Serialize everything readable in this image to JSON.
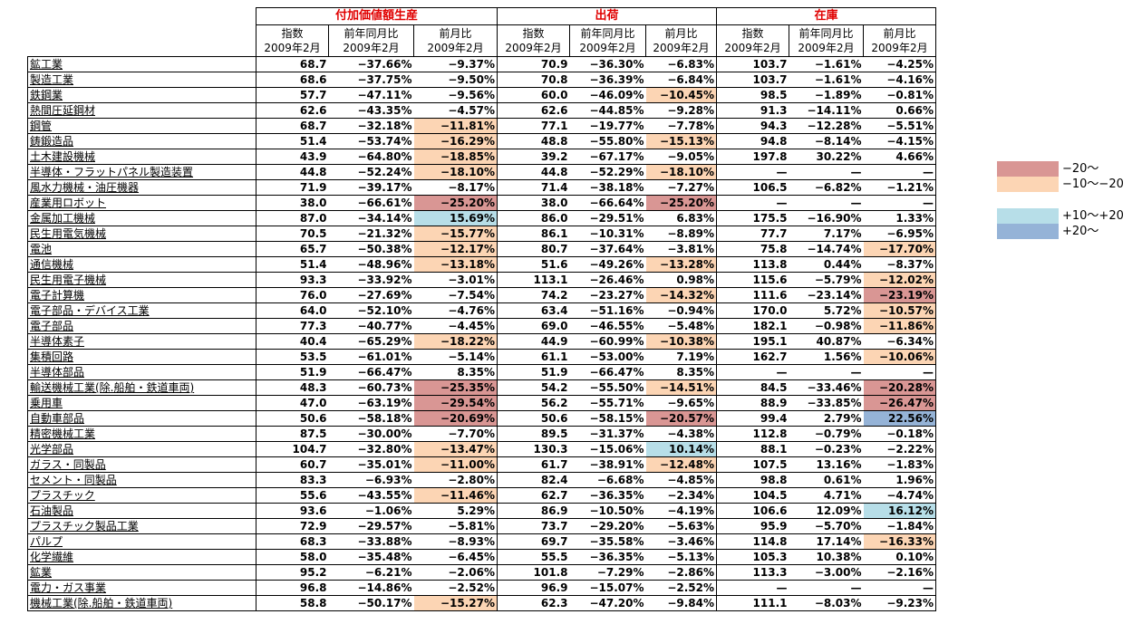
{
  "groups": [
    {
      "title": "付加価値額生産"
    },
    {
      "title": "出荷"
    },
    {
      "title": "在庫"
    }
  ],
  "sub_headers": [
    {
      "line1": "指数",
      "line2": "2009年2月"
    },
    {
      "line1": "前年同月比",
      "line2": "2009年2月"
    },
    {
      "line1": "前月比",
      "line2": "2009年2月"
    }
  ],
  "colors": {
    "le_minus20": "#d99694",
    "minus10_to_minus20": "#fcd5b4",
    "plus10_to_plus20": "#b7dee8",
    "ge_plus20": "#95b3d7"
  },
  "legend": [
    {
      "label": "−20〜",
      "color": "#d99694"
    },
    {
      "label": "−10〜−20",
      "color": "#fcd5b4"
    },
    {
      "label": "+10〜+20",
      "color": "#b7dee8"
    },
    {
      "label": "+20〜",
      "color": "#95b3d7"
    }
  ],
  "rows": [
    {
      "label": "鉱工業",
      "values": [
        "68.7",
        "−37.66%",
        "−9.37%",
        "70.9",
        "−36.30%",
        "−6.83%",
        "103.7",
        "−1.61%",
        "−4.25%"
      ]
    },
    {
      "label": "製造工業",
      "values": [
        "68.6",
        "−37.75%",
        "−9.50%",
        "70.8",
        "−36.39%",
        "−6.84%",
        "103.7",
        "−1.61%",
        "−4.16%"
      ]
    },
    {
      "label": "鉄鋼業",
      "values": [
        "57.7",
        "−47.11%",
        "−9.56%",
        "60.0",
        "−46.09%",
        "−10.45%",
        "98.5",
        "−1.89%",
        "−0.81%"
      ]
    },
    {
      "label": "熱間圧延鋼材",
      "values": [
        "62.6",
        "−43.35%",
        "−4.57%",
        "62.6",
        "−44.85%",
        "−9.28%",
        "91.3",
        "−14.11%",
        "0.66%"
      ]
    },
    {
      "label": "鋼管",
      "values": [
        "68.7",
        "−32.18%",
        "−11.81%",
        "77.1",
        "−19.77%",
        "−7.78%",
        "94.3",
        "−12.28%",
        "−5.51%"
      ]
    },
    {
      "label": "鋳鍛造品",
      "values": [
        "51.4",
        "−53.74%",
        "−16.29%",
        "48.8",
        "−55.80%",
        "−15.13%",
        "94.8",
        "−8.14%",
        "−4.15%"
      ]
    },
    {
      "label": "土木建設機械",
      "values": [
        "43.9",
        "−64.80%",
        "−18.85%",
        "39.2",
        "−67.17%",
        "−9.05%",
        "197.8",
        "30.22%",
        "4.66%"
      ]
    },
    {
      "label": "半導体・フラットパネル製造装置",
      "values": [
        "44.8",
        "−52.24%",
        "−18.10%",
        "44.8",
        "−52.29%",
        "−18.10%",
        "—",
        "—",
        "—"
      ]
    },
    {
      "label": "風水力機械・油圧機器",
      "values": [
        "71.9",
        "−39.17%",
        "−8.17%",
        "71.4",
        "−38.18%",
        "−7.27%",
        "106.5",
        "−6.82%",
        "−1.21%"
      ]
    },
    {
      "label": "産業用ロボット",
      "values": [
        "38.0",
        "−66.61%",
        "−25.20%",
        "38.0",
        "−66.64%",
        "−25.20%",
        "—",
        "—",
        "—"
      ]
    },
    {
      "label": "金属加工機械",
      "values": [
        "87.0",
        "−34.14%",
        "15.69%",
        "86.0",
        "−29.51%",
        "6.83%",
        "175.5",
        "−16.90%",
        "1.33%"
      ]
    },
    {
      "label": "民生用電気機械",
      "values": [
        "70.5",
        "−21.32%",
        "−15.77%",
        "86.1",
        "−10.31%",
        "−8.89%",
        "77.7",
        "7.17%",
        "−6.95%"
      ]
    },
    {
      "label": "電池",
      "values": [
        "65.7",
        "−50.38%",
        "−12.17%",
        "80.7",
        "−37.64%",
        "−3.81%",
        "75.8",
        "−14.74%",
        "−17.70%"
      ]
    },
    {
      "label": "通信機械",
      "values": [
        "51.4",
        "−48.96%",
        "−13.18%",
        "51.6",
        "−49.26%",
        "−13.28%",
        "113.8",
        "0.44%",
        "−8.37%"
      ]
    },
    {
      "label": "民生用電子機械",
      "values": [
        "93.3",
        "−33.92%",
        "−3.01%",
        "113.1",
        "−26.46%",
        "0.98%",
        "115.6",
        "−5.79%",
        "−12.02%"
      ]
    },
    {
      "label": "電子計算機",
      "values": [
        "76.0",
        "−27.69%",
        "−7.54%",
        "74.2",
        "−23.27%",
        "−14.32%",
        "111.6",
        "−23.14%",
        "−23.19%"
      ]
    },
    {
      "label": "電子部品・デバイス工業",
      "values": [
        "64.0",
        "−52.10%",
        "−4.76%",
        "63.4",
        "−51.16%",
        "−0.94%",
        "170.0",
        "5.72%",
        "−10.57%"
      ]
    },
    {
      "label": "電子部品",
      "values": [
        "77.3",
        "−40.77%",
        "−4.45%",
        "69.0",
        "−46.55%",
        "−5.48%",
        "182.1",
        "−0.98%",
        "−11.86%"
      ]
    },
    {
      "label": "半導体素子",
      "values": [
        "40.4",
        "−65.29%",
        "−18.22%",
        "44.9",
        "−60.99%",
        "−10.38%",
        "195.1",
        "40.87%",
        "−6.34%"
      ]
    },
    {
      "label": "集積回路",
      "values": [
        "53.5",
        "−61.01%",
        "−5.14%",
        "61.1",
        "−53.00%",
        "7.19%",
        "162.7",
        "1.56%",
        "−10.06%"
      ]
    },
    {
      "label": "半導体部品",
      "values": [
        "51.9",
        "−66.47%",
        "8.35%",
        "51.9",
        "−66.47%",
        "8.35%",
        "—",
        "—",
        "—"
      ]
    },
    {
      "label": "輸送機械工業(除.船舶・鉄道車両)",
      "values": [
        "48.3",
        "−60.73%",
        "−25.35%",
        "54.2",
        "−55.50%",
        "−14.51%",
        "84.5",
        "−33.46%",
        "−20.28%"
      ]
    },
    {
      "label": "乗用車",
      "values": [
        "47.0",
        "−63.19%",
        "−29.54%",
        "56.2",
        "−55.71%",
        "−9.65%",
        "88.9",
        "−33.85%",
        "−26.47%"
      ]
    },
    {
      "label": "自動車部品",
      "values": [
        "50.6",
        "−58.18%",
        "−20.69%",
        "50.6",
        "−58.15%",
        "−20.57%",
        "99.4",
        "2.79%",
        "22.56%"
      ]
    },
    {
      "label": "精密機械工業",
      "values": [
        "87.5",
        "−30.00%",
        "−7.70%",
        "89.5",
        "−31.37%",
        "−4.38%",
        "112.8",
        "−0.79%",
        "−0.18%"
      ]
    },
    {
      "label": "光学部品",
      "values": [
        "104.7",
        "−32.80%",
        "−13.47%",
        "130.3",
        "−15.06%",
        "10.14%",
        "88.1",
        "−0.23%",
        "−2.22%"
      ]
    },
    {
      "label": "ガラス・同製品",
      "values": [
        "60.7",
        "−35.01%",
        "−11.00%",
        "61.7",
        "−38.91%",
        "−12.48%",
        "107.5",
        "13.16%",
        "−1.83%"
      ]
    },
    {
      "label": "セメント・同製品",
      "values": [
        "83.3",
        "−6.93%",
        "−2.80%",
        "82.4",
        "−6.68%",
        "−4.85%",
        "98.8",
        "0.61%",
        "1.96%"
      ]
    },
    {
      "label": "プラスチック",
      "values": [
        "55.6",
        "−43.55%",
        "−11.46%",
        "62.7",
        "−36.35%",
        "−2.34%",
        "104.5",
        "4.71%",
        "−4.74%"
      ]
    },
    {
      "label": "石油製品",
      "values": [
        "93.6",
        "−1.06%",
        "5.29%",
        "86.9",
        "−10.50%",
        "−4.19%",
        "106.6",
        "12.09%",
        "16.12%"
      ]
    },
    {
      "label": "プラスチック製品工業",
      "values": [
        "72.9",
        "−29.57%",
        "−5.81%",
        "73.7",
        "−29.20%",
        "−5.63%",
        "95.9",
        "−5.70%",
        "−1.84%"
      ]
    },
    {
      "label": "パルプ",
      "values": [
        "68.3",
        "−33.88%",
        "−8.93%",
        "69.7",
        "−35.58%",
        "−3.46%",
        "114.8",
        "17.14%",
        "−16.33%"
      ]
    },
    {
      "label": "化学繊維",
      "values": [
        "58.0",
        "−35.48%",
        "−6.45%",
        "55.5",
        "−36.35%",
        "−5.13%",
        "105.3",
        "10.38%",
        "0.10%"
      ]
    },
    {
      "label": "鉱業",
      "values": [
        "95.2",
        "−6.21%",
        "−2.06%",
        "101.8",
        "−7.29%",
        "−2.86%",
        "113.3",
        "−3.00%",
        "−2.16%"
      ]
    },
    {
      "label": "電力・ガス事業",
      "values": [
        "96.8",
        "−14.86%",
        "−2.52%",
        "96.9",
        "−15.07%",
        "−2.52%",
        "—",
        "—",
        "—"
      ]
    },
    {
      "label": "機械工業(除.船舶・鉄道車両)",
      "values": [
        "58.8",
        "−50.17%",
        "−15.27%",
        "62.3",
        "−47.20%",
        "−9.84%",
        "111.1",
        "−8.03%",
        "−9.23%"
      ]
    }
  ]
}
